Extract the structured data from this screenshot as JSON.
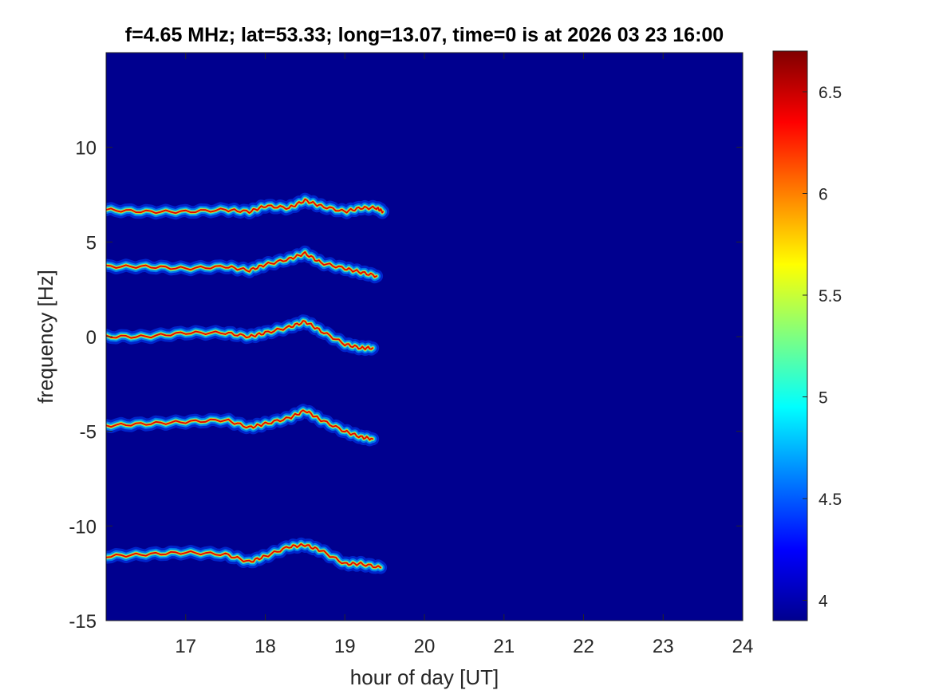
{
  "chart_data": {
    "type": "heatmap",
    "title": "f=4.65 MHz;  lat=53.33; long=13.07, time=0 is at 2026 03 23 16:00",
    "xlabel": "hour of day [UT]",
    "ylabel": "frequency [Hz]",
    "xlim": [
      16,
      24
    ],
    "ylim": [
      -15,
      15
    ],
    "xticks": [
      17,
      18,
      19,
      20,
      21,
      22,
      23,
      24
    ],
    "yticks": [
      -15,
      -10,
      -5,
      0,
      5,
      10
    ],
    "colorbar": {
      "colormap": "jet",
      "range": [
        3.9,
        6.7
      ],
      "ticks": [
        4,
        4.5,
        5,
        5.5,
        6,
        6.5
      ]
    },
    "background_color": "#00008f",
    "traces": [
      {
        "base_frequency": 6.7,
        "points": [
          [
            16.0,
            6.7
          ],
          [
            16.5,
            6.6
          ],
          [
            17.0,
            6.6
          ],
          [
            17.5,
            6.7
          ],
          [
            17.8,
            6.6
          ],
          [
            18.0,
            6.9
          ],
          [
            18.3,
            6.8
          ],
          [
            18.5,
            7.2
          ],
          [
            18.7,
            6.9
          ],
          [
            19.0,
            6.6
          ],
          [
            19.2,
            6.8
          ],
          [
            19.4,
            6.8
          ],
          [
            19.48,
            6.6
          ]
        ]
      },
      {
        "base_frequency": 3.7,
        "points": [
          [
            16.0,
            3.7
          ],
          [
            16.5,
            3.7
          ],
          [
            17.0,
            3.6
          ],
          [
            17.5,
            3.7
          ],
          [
            17.8,
            3.5
          ],
          [
            18.0,
            3.8
          ],
          [
            18.3,
            4.1
          ],
          [
            18.5,
            4.4
          ],
          [
            18.7,
            3.9
          ],
          [
            19.0,
            3.6
          ],
          [
            19.2,
            3.4
          ],
          [
            19.4,
            3.2
          ]
        ]
      },
      {
        "base_frequency": 0.0,
        "points": [
          [
            16.0,
            0.0
          ],
          [
            16.5,
            0.0
          ],
          [
            17.0,
            0.2
          ],
          [
            17.5,
            0.2
          ],
          [
            17.8,
            0.0
          ],
          [
            18.0,
            0.2
          ],
          [
            18.3,
            0.5
          ],
          [
            18.5,
            0.8
          ],
          [
            18.7,
            0.3
          ],
          [
            19.0,
            -0.4
          ],
          [
            19.2,
            -0.6
          ],
          [
            19.35,
            -0.6
          ]
        ]
      },
      {
        "base_frequency": -4.7,
        "points": [
          [
            16.0,
            -4.7
          ],
          [
            16.5,
            -4.6
          ],
          [
            17.0,
            -4.5
          ],
          [
            17.5,
            -4.4
          ],
          [
            17.8,
            -4.8
          ],
          [
            18.0,
            -4.6
          ],
          [
            18.3,
            -4.3
          ],
          [
            18.5,
            -3.9
          ],
          [
            18.7,
            -4.4
          ],
          [
            19.0,
            -5.0
          ],
          [
            19.2,
            -5.3
          ],
          [
            19.35,
            -5.4
          ]
        ]
      },
      {
        "base_frequency": -11.6,
        "points": [
          [
            16.0,
            -11.6
          ],
          [
            16.5,
            -11.5
          ],
          [
            17.0,
            -11.4
          ],
          [
            17.5,
            -11.5
          ],
          [
            17.8,
            -11.9
          ],
          [
            18.0,
            -11.6
          ],
          [
            18.3,
            -11.1
          ],
          [
            18.5,
            -11.0
          ],
          [
            18.7,
            -11.3
          ],
          [
            19.0,
            -12.0
          ],
          [
            19.2,
            -12.0
          ],
          [
            19.45,
            -12.2
          ]
        ]
      }
    ]
  }
}
